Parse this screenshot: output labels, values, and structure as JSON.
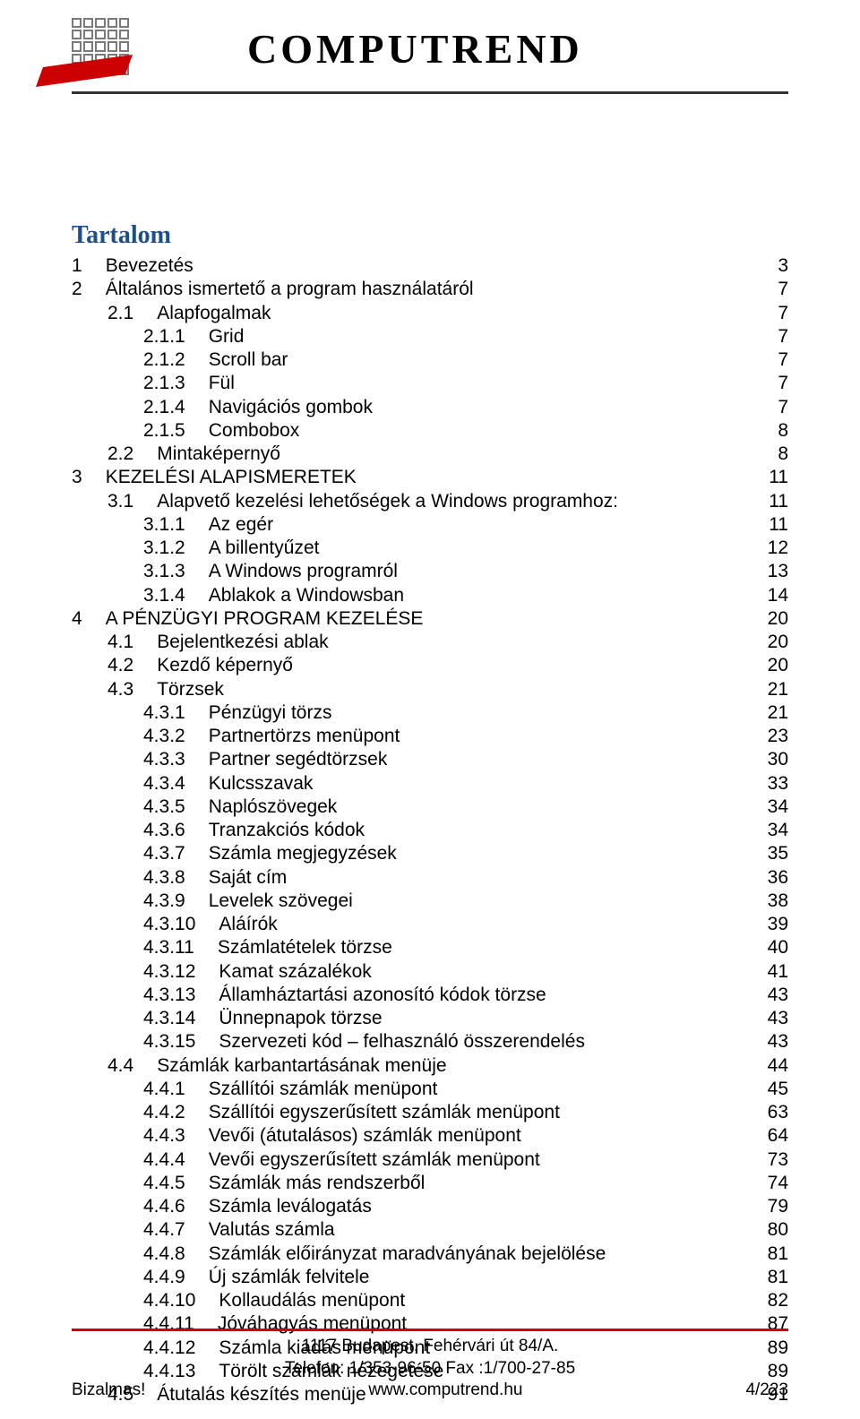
{
  "brand": "COMPUTREND",
  "colors": {
    "text": "#000000",
    "heading": "#1c4f8a",
    "accent_red": "#cc0000",
    "background": "#ffffff",
    "grid_border": "#7a7a7a"
  },
  "typography": {
    "body_family": "Arial",
    "body_size_pt": 16,
    "heading_family": "Times New Roman",
    "heading_size_pt": 21,
    "brand_size_pt": 34
  },
  "toc": {
    "title": "Tartalom",
    "entries": [
      {
        "level": 0,
        "num": "1",
        "text": "Bevezetés",
        "page": "3"
      },
      {
        "level": 0,
        "num": "2",
        "text": "Általános ismertető a program használatáról",
        "page": "7"
      },
      {
        "level": 1,
        "num": "2.1",
        "text": "Alapfogalmak",
        "page": "7"
      },
      {
        "level": 2,
        "num": "2.1.1",
        "text": "Grid",
        "page": "7"
      },
      {
        "level": 2,
        "num": "2.1.2",
        "text": "Scroll bar",
        "page": "7"
      },
      {
        "level": 2,
        "num": "2.1.3",
        "text": "Fül",
        "page": "7"
      },
      {
        "level": 2,
        "num": "2.1.4",
        "text": "Navigációs gombok",
        "page": "7"
      },
      {
        "level": 2,
        "num": "2.1.5",
        "text": "Combobox",
        "page": "8"
      },
      {
        "level": 1,
        "num": "2.2",
        "text": "Mintaképernyő",
        "page": "8"
      },
      {
        "level": 0,
        "num": "3",
        "text": "KEZELÉSI ALAPISMERETEK",
        "page": "11"
      },
      {
        "level": 1,
        "num": "3.1",
        "text": "Alapvető kezelési lehetőségek a Windows programhoz:",
        "page": "11"
      },
      {
        "level": 2,
        "num": "3.1.1",
        "text": "Az egér",
        "page": "11"
      },
      {
        "level": 2,
        "num": "3.1.2",
        "text": "A billentyűzet",
        "page": "12"
      },
      {
        "level": 2,
        "num": "3.1.3",
        "text": "A Windows programról",
        "page": "13"
      },
      {
        "level": 2,
        "num": "3.1.4",
        "text": "Ablakok a Windowsban",
        "page": "14"
      },
      {
        "level": 0,
        "num": "4",
        "text": "A PÉNZÜGYI PROGRAM KEZELÉSE",
        "page": "20"
      },
      {
        "level": 1,
        "num": "4.1",
        "text": "Bejelentkezési ablak",
        "page": "20"
      },
      {
        "level": 1,
        "num": "4.2",
        "text": "Kezdő képernyő",
        "page": "20"
      },
      {
        "level": 1,
        "num": "4.3",
        "text": "Törzsek",
        "page": "21"
      },
      {
        "level": 2,
        "num": "4.3.1",
        "text": "Pénzügyi törzs",
        "page": "21"
      },
      {
        "level": 2,
        "num": "4.3.2",
        "text": "Partnertörzs menüpont",
        "page": "23"
      },
      {
        "level": 2,
        "num": "4.3.3",
        "text": "Partner segédtörzsek",
        "page": "30"
      },
      {
        "level": 2,
        "num": "4.3.4",
        "text": "Kulcsszavak",
        "page": "33"
      },
      {
        "level": 2,
        "num": "4.3.5",
        "text": "Naplószövegek",
        "page": "34"
      },
      {
        "level": 2,
        "num": "4.3.6",
        "text": "Tranzakciós kódok",
        "page": "34"
      },
      {
        "level": 2,
        "num": "4.3.7",
        "text": "Számla megjegyzések",
        "page": "35"
      },
      {
        "level": 2,
        "num": "4.3.8",
        "text": "Saját cím",
        "page": "36"
      },
      {
        "level": 2,
        "num": "4.3.9",
        "text": "Levelek szövegei",
        "page": "38"
      },
      {
        "level": 2,
        "num": "4.3.10",
        "text": "Aláírók",
        "page": "39"
      },
      {
        "level": 2,
        "num": "4.3.11",
        "text": "Számlatételek törzse",
        "page": "40"
      },
      {
        "level": 2,
        "num": "4.3.12",
        "text": "Kamat százalékok",
        "page": "41"
      },
      {
        "level": 2,
        "num": "4.3.13",
        "text": "Államháztartási azonosító kódok törzse",
        "page": "43"
      },
      {
        "level": 2,
        "num": "4.3.14",
        "text": "Ünnepnapok törzse",
        "page": "43"
      },
      {
        "level": 2,
        "num": "4.3.15",
        "text": "Szervezeti kód – felhasználó összerendelés",
        "page": "43"
      },
      {
        "level": 1,
        "num": "4.4",
        "text": "Számlák karbantartásának menüje",
        "page": "44"
      },
      {
        "level": 2,
        "num": "4.4.1",
        "text": "Szállítói számlák menüpont",
        "page": "45"
      },
      {
        "level": 2,
        "num": "4.4.2",
        "text": "Szállítói egyszerűsített számlák menüpont",
        "page": "63"
      },
      {
        "level": 2,
        "num": "4.4.3",
        "text": "Vevői (átutalásos) számlák menüpont",
        "page": "64"
      },
      {
        "level": 2,
        "num": "4.4.4",
        "text": "Vevői egyszerűsített számlák menüpont",
        "page": "73"
      },
      {
        "level": 2,
        "num": "4.4.5",
        "text": "Számlák más rendszerből",
        "page": "74"
      },
      {
        "level": 2,
        "num": "4.4.6",
        "text": "Számla leválogatás",
        "page": "79"
      },
      {
        "level": 2,
        "num": "4.4.7",
        "text": "Valutás számla",
        "page": "80"
      },
      {
        "level": 2,
        "num": "4.4.8",
        "text": "Számlák előirányzat maradványának bejelölése",
        "page": "81"
      },
      {
        "level": 2,
        "num": "4.4.9",
        "text": "Új számlák felvitele",
        "page": "81"
      },
      {
        "level": 2,
        "num": "4.4.10",
        "text": "Kollaudálás menüpont",
        "page": "82"
      },
      {
        "level": 2,
        "num": "4.4.11",
        "text": "Jóváhagyás menüpont",
        "page": "87"
      },
      {
        "level": 2,
        "num": "4.4.12",
        "text": "Számla kiadás menüpont",
        "page": "89"
      },
      {
        "level": 2,
        "num": "4.4.13",
        "text": "Törölt számlák nézegetése",
        "page": "89"
      },
      {
        "level": 1,
        "num": "4.5",
        "text": "Átutalás készítés menüje",
        "page": "91"
      }
    ]
  },
  "footer": {
    "address": "1117 Budapest, Fehérvári út 84/A.",
    "phone_line": "Telefon: 1/353-96-50   Fax :1/700-27-85",
    "confidential": "Bizalmas!",
    "website": "www.computrend.hu",
    "page_indicator": "4/223"
  }
}
